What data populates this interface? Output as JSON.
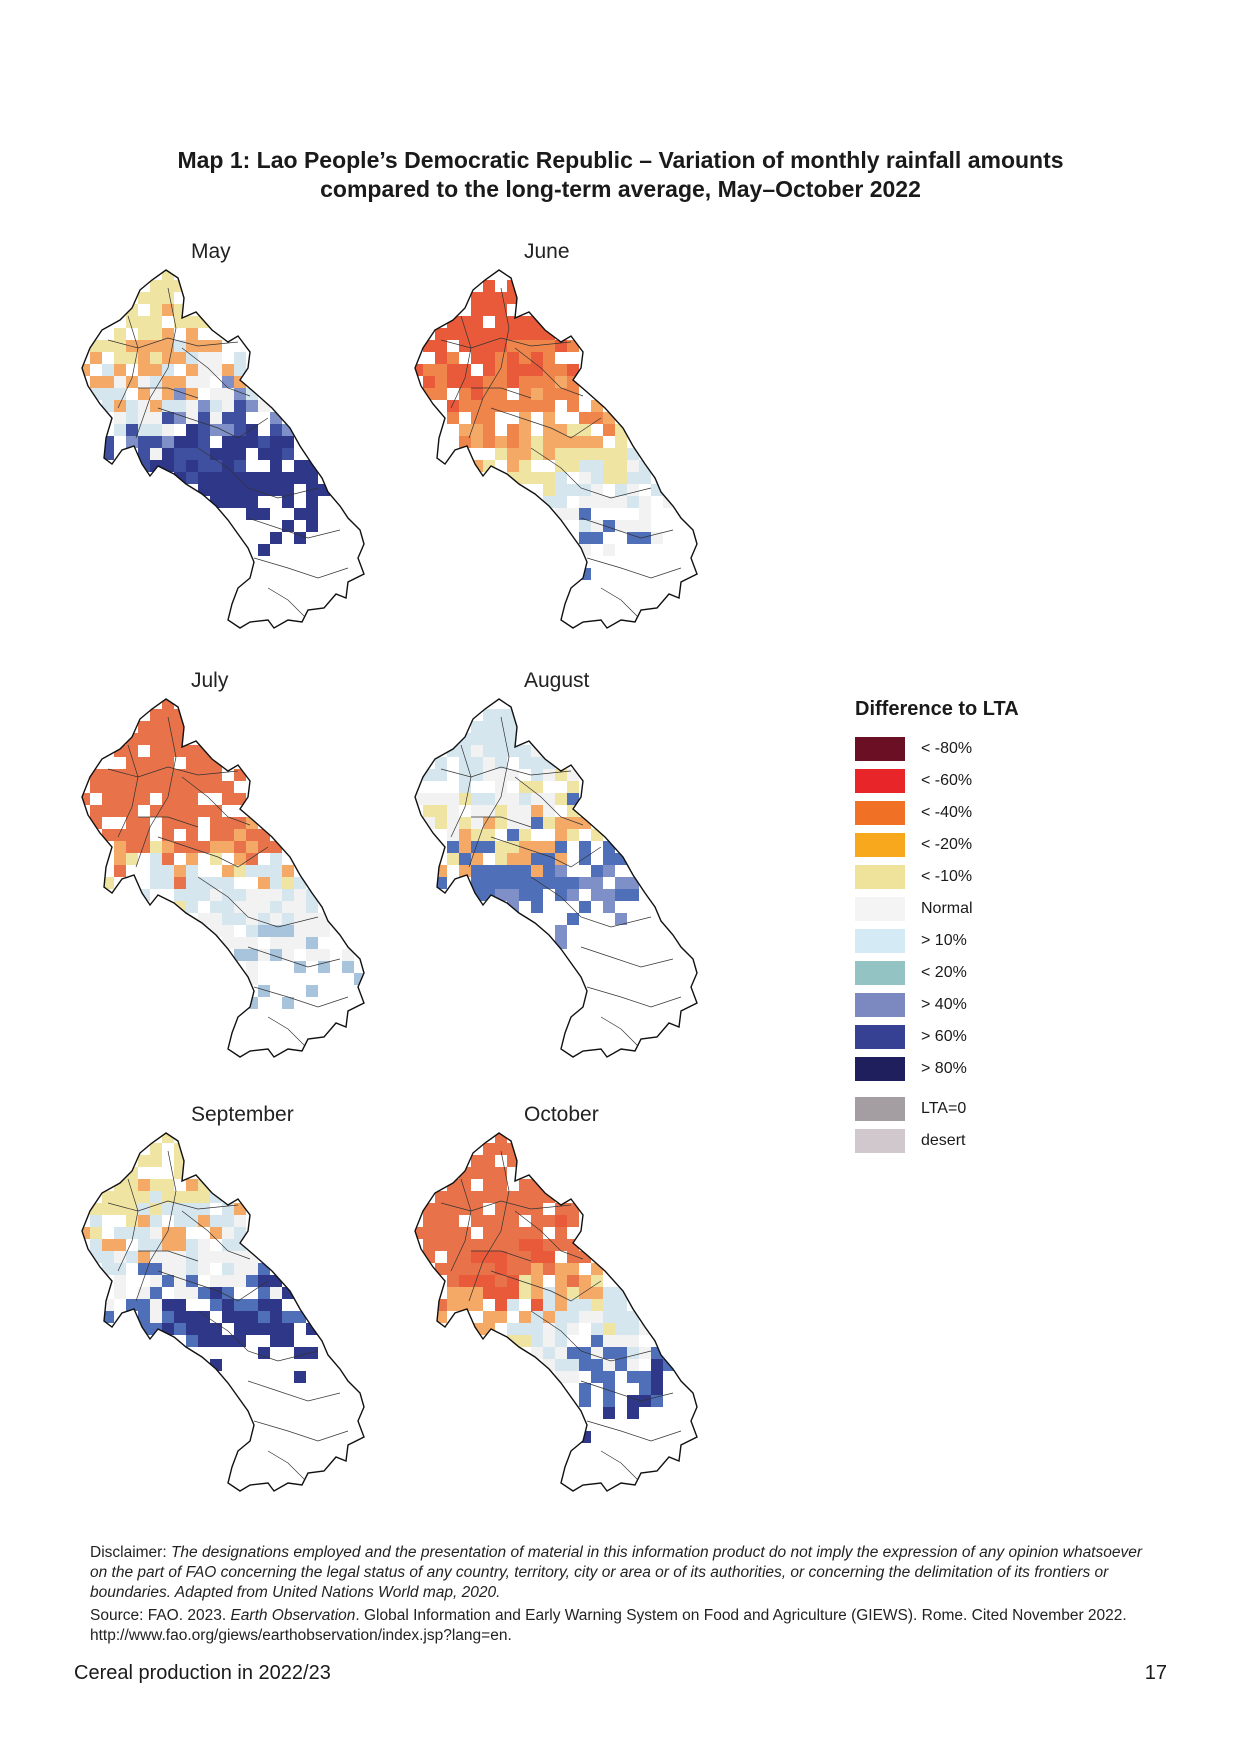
{
  "title": {
    "line1": "Map 1: Lao People’s Democratic Republic –  Variation of monthly rainfall amounts",
    "line2": "compared to the long-term average, May–October 2022"
  },
  "panels": [
    {
      "label": "May",
      "cells": {
        "#f0e4a2": 30,
        "#f5a967": 40,
        "#d5e6ee": 22,
        "#f2f2f2": 26,
        "#7f8fc8": 14,
        "#4050a0": 30,
        "#2e3788": 70
      }
    },
    {
      "label": "June",
      "cells": {
        "#e85a3a": 64,
        "#f0854b": 58,
        "#f5a967": 38,
        "#f0e4a2": 30,
        "#d5e6ee": 20,
        "#f2f2f2": 24,
        "#4f6fb8": 8
      }
    },
    {
      "label": "July",
      "cells": {
        "#e8734a": 124,
        "#f5a967": 18,
        "#f0e4a2": 10,
        "#d5e6ee": 40,
        "#f2f2f2": 40,
        "#a7c4dc": 18
      }
    },
    {
      "label": "August",
      "cells": {
        "#d5e6ee": 40,
        "#f2f2f2": 36,
        "#f0e4a2": 28,
        "#f5a967": 20,
        "#4f6fb8": 52,
        "#7f8fc8": 18
      }
    },
    {
      "label": "September",
      "cells": {
        "#f0e4a2": 34,
        "#f5a967": 18,
        "#d5e6ee": 36,
        "#f2f2f2": 34,
        "#4f6fb8": 36,
        "#2e3788": 46
      }
    },
    {
      "label": "October",
      "cells": {
        "#e8734a": 100,
        "#e85a3a": 22,
        "#f5a967": 28,
        "#f0e4a2": 10,
        "#d5e6ee": 30,
        "#f2f2f2": 22,
        "#4f6fb8": 24,
        "#2e3788": 12
      }
    }
  ],
  "legend": {
    "title": "Difference to LTA",
    "items": [
      {
        "label": "< -80%",
        "color": "#6b1024"
      },
      {
        "label": "< -60%",
        "color": "#e8262a"
      },
      {
        "label": "< -40%",
        "color": "#f07026"
      },
      {
        "label": "< -20%",
        "color": "#f7a81c"
      },
      {
        "label": "< -10%",
        "color": "#efe39c"
      },
      {
        "label": "Normal",
        "color": "#f4f4f4"
      },
      {
        "label": "> 10%",
        "color": "#d4ebf6"
      },
      {
        "label": "< 20%",
        "color": "#93c3c3"
      },
      {
        "label": "> 40%",
        "color": "#7c88c0"
      },
      {
        "label": "> 60%",
        "color": "#364193"
      },
      {
        "label": "> 80%",
        "color": "#1f1f5e"
      },
      {
        "label": "LTA=0",
        "color": "#a49ea3"
      },
      {
        "label": "desert",
        "color": "#d0c8cd"
      }
    ]
  },
  "notes": {
    "disclaimer_label": "Disclaimer:",
    "disclaimer_text": "The designations employed and the presentation of material in this information product do not imply the expression of any opinion whatsoever on the part of FAO concerning the legal status of any country, territory, city or area or of its authorities, or concerning the delimitation of its frontiers or boundaries. Adapted from United Nations World map, 2020.",
    "source_label": "Source: FAO. 2023.",
    "source_title": "Earth Observation",
    "source_text": ". Global Information and Early Warning System on Food and Agriculture (GIEWS). Rome. Cited November 2022. http://www.fao.org/giews/earthobservation/index.jsp?lang=en."
  },
  "footer": {
    "left": "Cereal production in 2022/23",
    "page": "17"
  }
}
